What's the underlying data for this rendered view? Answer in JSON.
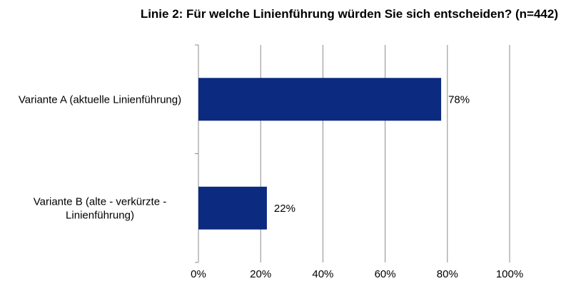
{
  "chart_data": {
    "type": "bar",
    "orientation": "horizontal",
    "title": "Linie 2: Für welche Linienführung würden Sie sich entscheiden?  (n=442)",
    "categories": [
      [
        "Variante A (aktuelle Linienführung)"
      ],
      [
        "Variante B (alte - verkürzte -",
        "Linienführung)"
      ]
    ],
    "values": [
      78,
      22
    ],
    "data_labels": [
      "78%",
      "22%"
    ],
    "xlim": [
      0,
      100
    ],
    "xticks": [
      "0%",
      "20%",
      "40%",
      "60%",
      "80%",
      "100%"
    ],
    "grid": true,
    "legend": "none",
    "bar_color": "#0b2a80"
  }
}
